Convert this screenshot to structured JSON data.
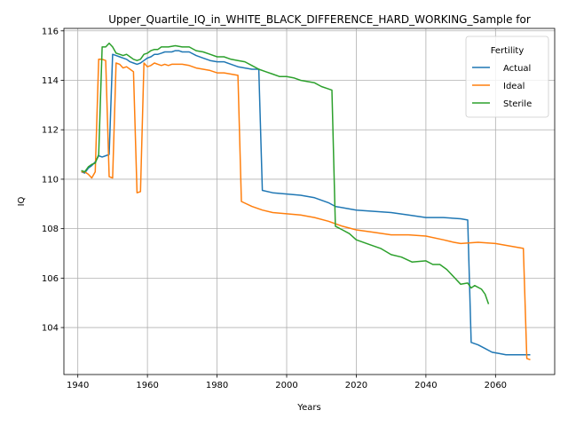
{
  "chart_data": {
    "type": "line",
    "title": "Upper_Quartile_IQ_in_WHITE_BLACK_DIFFERENCE_HARD_WORKING_Sample for",
    "xlabel": "Years",
    "ylabel": "IQ",
    "xlim": [
      1936,
      2077
    ],
    "ylim": [
      102.1,
      116.1
    ],
    "xticks": [
      1940,
      1960,
      1980,
      2000,
      2020,
      2040,
      2060
    ],
    "yticks": [
      104,
      106,
      108,
      110,
      112,
      114,
      116
    ],
    "grid": true,
    "legend": {
      "title": "Fertility",
      "placement": "top-right"
    },
    "series": [
      {
        "name": "Actual",
        "color": "#1f77b4",
        "points": [
          [
            1941,
            110.3
          ],
          [
            1942,
            110.25
          ],
          [
            1943,
            110.45
          ],
          [
            1944,
            110.55
          ],
          [
            1945,
            110.7
          ],
          [
            1946,
            110.95
          ],
          [
            1947,
            110.9
          ],
          [
            1948,
            110.95
          ],
          [
            1949,
            111.0
          ],
          [
            1950,
            115.05
          ],
          [
            1951,
            115.0
          ],
          [
            1952,
            114.95
          ],
          [
            1953,
            114.9
          ],
          [
            1954,
            114.85
          ],
          [
            1955,
            114.75
          ],
          [
            1956,
            114.7
          ],
          [
            1957,
            114.65
          ],
          [
            1958,
            114.7
          ],
          [
            1959,
            114.8
          ],
          [
            1960,
            114.9
          ],
          [
            1961,
            114.95
          ],
          [
            1962,
            115.05
          ],
          [
            1963,
            115.05
          ],
          [
            1964,
            115.1
          ],
          [
            1965,
            115.15
          ],
          [
            1966,
            115.15
          ],
          [
            1967,
            115.15
          ],
          [
            1968,
            115.2
          ],
          [
            1969,
            115.2
          ],
          [
            1970,
            115.15
          ],
          [
            1972,
            115.15
          ],
          [
            1974,
            115.0
          ],
          [
            1976,
            114.9
          ],
          [
            1978,
            114.8
          ],
          [
            1980,
            114.75
          ],
          [
            1982,
            114.75
          ],
          [
            1984,
            114.65
          ],
          [
            1986,
            114.55
          ],
          [
            1988,
            114.5
          ],
          [
            1990,
            114.45
          ],
          [
            1992,
            114.45
          ],
          [
            1993,
            109.55
          ],
          [
            1996,
            109.45
          ],
          [
            2000,
            109.4
          ],
          [
            2004,
            109.35
          ],
          [
            2008,
            109.25
          ],
          [
            2012,
            109.05
          ],
          [
            2014,
            108.9
          ],
          [
            2018,
            108.8
          ],
          [
            2020,
            108.75
          ],
          [
            2025,
            108.7
          ],
          [
            2030,
            108.65
          ],
          [
            2035,
            108.55
          ],
          [
            2040,
            108.45
          ],
          [
            2045,
            108.45
          ],
          [
            2050,
            108.4
          ],
          [
            2052,
            108.35
          ],
          [
            2053,
            103.4
          ],
          [
            2055,
            103.3
          ],
          [
            2057,
            103.15
          ],
          [
            2059,
            103.0
          ],
          [
            2061,
            102.95
          ],
          [
            2063,
            102.9
          ],
          [
            2065,
            102.9
          ],
          [
            2067,
            102.9
          ],
          [
            2070,
            102.9
          ]
        ]
      },
      {
        "name": "Ideal",
        "color": "#ff7f0e",
        "points": [
          [
            1941,
            110.3
          ],
          [
            1942,
            110.3
          ],
          [
            1943,
            110.2
          ],
          [
            1944,
            110.05
          ],
          [
            1945,
            110.3
          ],
          [
            1946,
            114.85
          ],
          [
            1947,
            114.85
          ],
          [
            1948,
            114.8
          ],
          [
            1949,
            110.1
          ],
          [
            1950,
            110.05
          ],
          [
            1951,
            114.7
          ],
          [
            1952,
            114.65
          ],
          [
            1953,
            114.5
          ],
          [
            1954,
            114.55
          ],
          [
            1955,
            114.45
          ],
          [
            1956,
            114.35
          ],
          [
            1957,
            109.45
          ],
          [
            1958,
            109.5
          ],
          [
            1959,
            114.7
          ],
          [
            1960,
            114.55
          ],
          [
            1961,
            114.6
          ],
          [
            1962,
            114.7
          ],
          [
            1963,
            114.65
          ],
          [
            1964,
            114.6
          ],
          [
            1965,
            114.65
          ],
          [
            1966,
            114.6
          ],
          [
            1967,
            114.65
          ],
          [
            1968,
            114.65
          ],
          [
            1970,
            114.65
          ],
          [
            1972,
            114.6
          ],
          [
            1974,
            114.5
          ],
          [
            1976,
            114.45
          ],
          [
            1978,
            114.4
          ],
          [
            1980,
            114.3
          ],
          [
            1982,
            114.3
          ],
          [
            1984,
            114.25
          ],
          [
            1986,
            114.2
          ],
          [
            1987,
            109.1
          ],
          [
            1990,
            108.9
          ],
          [
            1993,
            108.75
          ],
          [
            1996,
            108.65
          ],
          [
            2000,
            108.6
          ],
          [
            2004,
            108.55
          ],
          [
            2008,
            108.45
          ],
          [
            2012,
            108.3
          ],
          [
            2016,
            108.1
          ],
          [
            2020,
            107.95
          ],
          [
            2025,
            107.85
          ],
          [
            2030,
            107.75
          ],
          [
            2035,
            107.75
          ],
          [
            2040,
            107.7
          ],
          [
            2045,
            107.55
          ],
          [
            2048,
            107.45
          ],
          [
            2050,
            107.4
          ],
          [
            2055,
            107.45
          ],
          [
            2060,
            107.4
          ],
          [
            2064,
            107.3
          ],
          [
            2068,
            107.2
          ],
          [
            2069,
            102.75
          ],
          [
            2070,
            102.7
          ]
        ]
      },
      {
        "name": "Sterile",
        "color": "#2ca02c",
        "points": [
          [
            1941,
            110.35
          ],
          [
            1942,
            110.3
          ],
          [
            1943,
            110.5
          ],
          [
            1944,
            110.6
          ],
          [
            1945,
            110.65
          ],
          [
            1946,
            111.0
          ],
          [
            1947,
            115.35
          ],
          [
            1948,
            115.35
          ],
          [
            1949,
            115.5
          ],
          [
            1950,
            115.35
          ],
          [
            1951,
            115.1
          ],
          [
            1952,
            115.05
          ],
          [
            1953,
            115.0
          ],
          [
            1954,
            115.05
          ],
          [
            1955,
            114.95
          ],
          [
            1956,
            114.85
          ],
          [
            1957,
            114.8
          ],
          [
            1958,
            114.85
          ],
          [
            1959,
            115.05
          ],
          [
            1960,
            115.1
          ],
          [
            1961,
            115.2
          ],
          [
            1962,
            115.25
          ],
          [
            1963,
            115.25
          ],
          [
            1964,
            115.35
          ],
          [
            1966,
            115.35
          ],
          [
            1968,
            115.4
          ],
          [
            1970,
            115.35
          ],
          [
            1972,
            115.35
          ],
          [
            1974,
            115.2
          ],
          [
            1976,
            115.15
          ],
          [
            1978,
            115.05
          ],
          [
            1980,
            114.95
          ],
          [
            1982,
            114.95
          ],
          [
            1984,
            114.85
          ],
          [
            1986,
            114.8
          ],
          [
            1988,
            114.75
          ],
          [
            1990,
            114.6
          ],
          [
            1992,
            114.45
          ],
          [
            1994,
            114.35
          ],
          [
            1996,
            114.25
          ],
          [
            1998,
            114.15
          ],
          [
            2000,
            114.15
          ],
          [
            2002,
            114.1
          ],
          [
            2004,
            114.0
          ],
          [
            2006,
            113.95
          ],
          [
            2008,
            113.9
          ],
          [
            2010,
            113.75
          ],
          [
            2012,
            113.65
          ],
          [
            2013,
            113.6
          ],
          [
            2014,
            108.1
          ],
          [
            2016,
            107.95
          ],
          [
            2018,
            107.8
          ],
          [
            2020,
            107.55
          ],
          [
            2024,
            107.35
          ],
          [
            2027,
            107.2
          ],
          [
            2030,
            106.95
          ],
          [
            2033,
            106.85
          ],
          [
            2036,
            106.65
          ],
          [
            2040,
            106.7
          ],
          [
            2042,
            106.55
          ],
          [
            2044,
            106.55
          ],
          [
            2046,
            106.35
          ],
          [
            2048,
            106.05
          ],
          [
            2050,
            105.75
          ],
          [
            2052,
            105.8
          ],
          [
            2053,
            105.6
          ],
          [
            2054,
            105.7
          ],
          [
            2056,
            105.55
          ],
          [
            2057,
            105.35
          ],
          [
            2058,
            104.95
          ]
        ]
      }
    ]
  }
}
